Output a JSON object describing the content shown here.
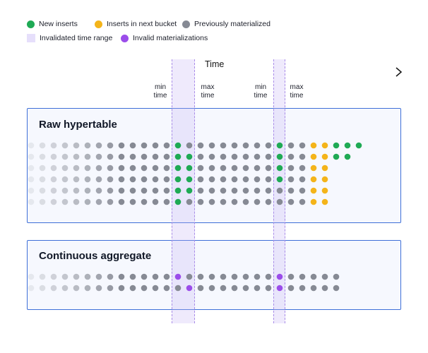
{
  "legend": {
    "new_inserts": "New inserts",
    "next_bucket": "Inserts in next bucket",
    "previously": "Previously materialized",
    "invalidated_range": "Invalidated time range",
    "invalid_materializations": "Invalid materializations"
  },
  "axis": {
    "label": "Time"
  },
  "time_labels": {
    "min1": "min\ntime",
    "max1": "max\ntime",
    "min2": "min\ntime",
    "max2": "max\ntime"
  },
  "panels": {
    "raw": "Raw hypertable",
    "cagg": "Continuous aggregate"
  },
  "colors": {
    "new": "#1faa55",
    "next": "#f4b41a",
    "prev": "#868a94",
    "invalid": "#9b4dea",
    "band": "#e6dffb",
    "panel_border": "#3e6fd8"
  }
}
